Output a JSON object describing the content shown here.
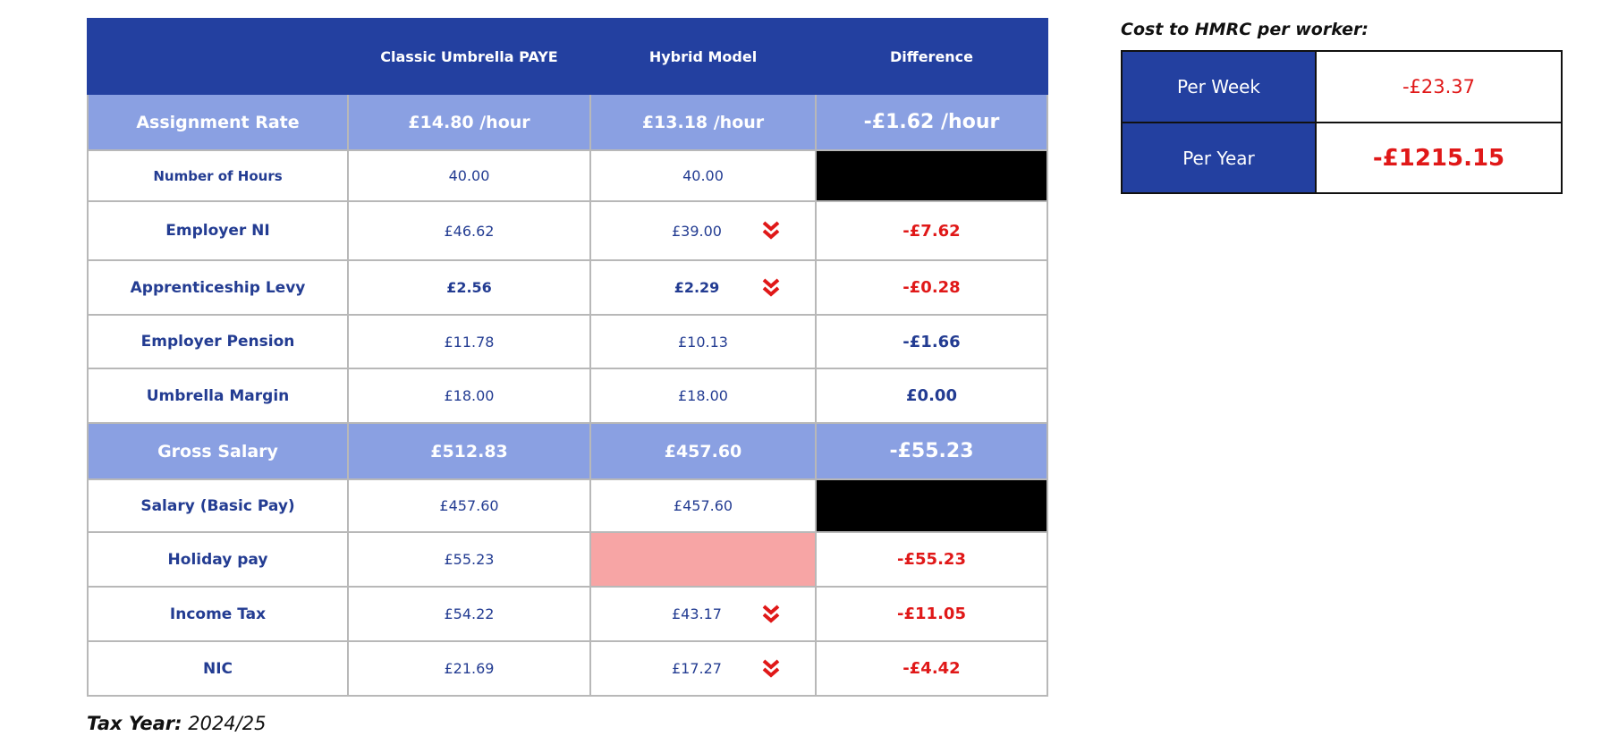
{
  "table": {
    "headers": [
      "",
      "Classic Umbrella PAYE",
      "Hybrid Model",
      "Difference"
    ],
    "assignment_rate": {
      "label": "Assignment Rate",
      "classic": "£14.80 /hour",
      "hybrid": "£13.18 /hour",
      "difference": "-£1.62 /hour"
    },
    "rows": [
      {
        "label": "Number of Hours",
        "classic": "40.00",
        "hybrid": "40.00",
        "difference": ""
      },
      {
        "label": "Employer NI",
        "classic": "£46.62",
        "hybrid": "£39.00",
        "difference": "-£7.62"
      },
      {
        "label": "Apprenticeship Levy",
        "classic": "£2.56",
        "hybrid": "£2.29",
        "difference": "-£0.28"
      },
      {
        "label": "Employer Pension",
        "classic": "£11.78",
        "hybrid": "£10.13",
        "difference": "-£1.66"
      },
      {
        "label": "Umbrella Margin",
        "classic": "£18.00",
        "hybrid": "£18.00",
        "difference": "£0.00"
      }
    ],
    "gross_salary": {
      "label": "Gross Salary",
      "classic": "£512.83",
      "hybrid": "£457.60",
      "difference": "-£55.23"
    },
    "rows2": [
      {
        "label": "Salary (Basic Pay)",
        "classic": "£457.60",
        "hybrid": "£457.60",
        "difference": ""
      },
      {
        "label": "Holiday pay",
        "classic": "£55.23",
        "hybrid": "",
        "difference": "-£55.23"
      },
      {
        "label": "Income Tax",
        "classic": "£54.22",
        "hybrid": "£43.17",
        "difference": "-£11.05"
      },
      {
        "label": "NIC",
        "classic": "£21.69",
        "hybrid": "£17.27",
        "difference": "-£4.42"
      }
    ],
    "decrease_icon": "double-chevron-down-icon"
  },
  "summary": {
    "title": "Cost to HMRC per worker:",
    "rows": [
      {
        "label": "Per Week",
        "value": "-£23.37"
      },
      {
        "label": "Per Year",
        "value": "-£1215.15"
      }
    ]
  },
  "footer": {
    "tax_year_label": "Tax Year:",
    "tax_year_value": "2024/25"
  },
  "colors": {
    "header_blue": "#2340a0",
    "band_blue": "#8aa0e2",
    "negative_red": "#e01818",
    "label_navy": "#233c92",
    "holiday_pink": "#f7a5a5"
  }
}
